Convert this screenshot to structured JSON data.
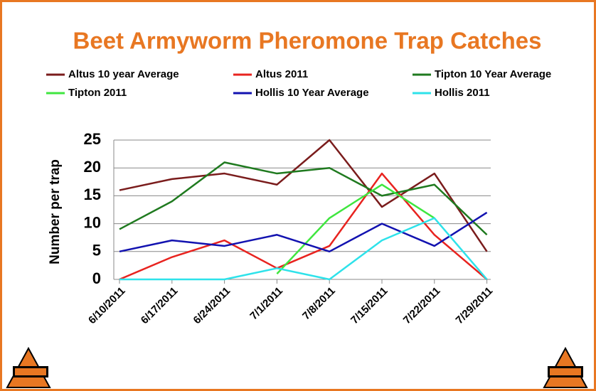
{
  "chart_data": {
    "type": "line",
    "title": "Beet Armyworm Pheromone Trap Catches",
    "y_label": "Number per trap",
    "categories": [
      "6/10/2011",
      "6/17/2011",
      "6/24/2011",
      "7/1/2011",
      "7/8/2011",
      "7/15/2011",
      "7/22/2011",
      "7/29/2011"
    ],
    "series": [
      {
        "name": "Altus 10 year Average",
        "color": "#7a1c1c",
        "values": [
          16,
          18,
          19,
          17,
          25,
          13,
          19,
          5
        ]
      },
      {
        "name": "Altus 2011",
        "color": "#e8231f",
        "values": [
          0,
          4,
          7,
          2,
          6,
          19,
          8,
          0
        ]
      },
      {
        "name": "Tipton 10 Year Average",
        "color": "#1f7a1f",
        "values": [
          9,
          14,
          21,
          19,
          20,
          15,
          17,
          8
        ]
      },
      {
        "name": "Tipton 2011",
        "color": "#3fe63f",
        "values": [
          null,
          null,
          null,
          1,
          11,
          17,
          11,
          null
        ]
      },
      {
        "name": "Hollis 10 Year Average",
        "color": "#1212b0",
        "values": [
          5,
          7,
          6,
          8,
          5,
          10,
          6,
          12
        ]
      },
      {
        "name": "Hollis 2011",
        "color": "#2ee2ea",
        "values": [
          0,
          0,
          0,
          2,
          0,
          7,
          11,
          0
        ]
      }
    ],
    "ylim": [
      0,
      25
    ],
    "yticks": [
      0,
      5,
      10,
      15,
      20,
      25
    ],
    "grid": true,
    "legend": "top"
  }
}
